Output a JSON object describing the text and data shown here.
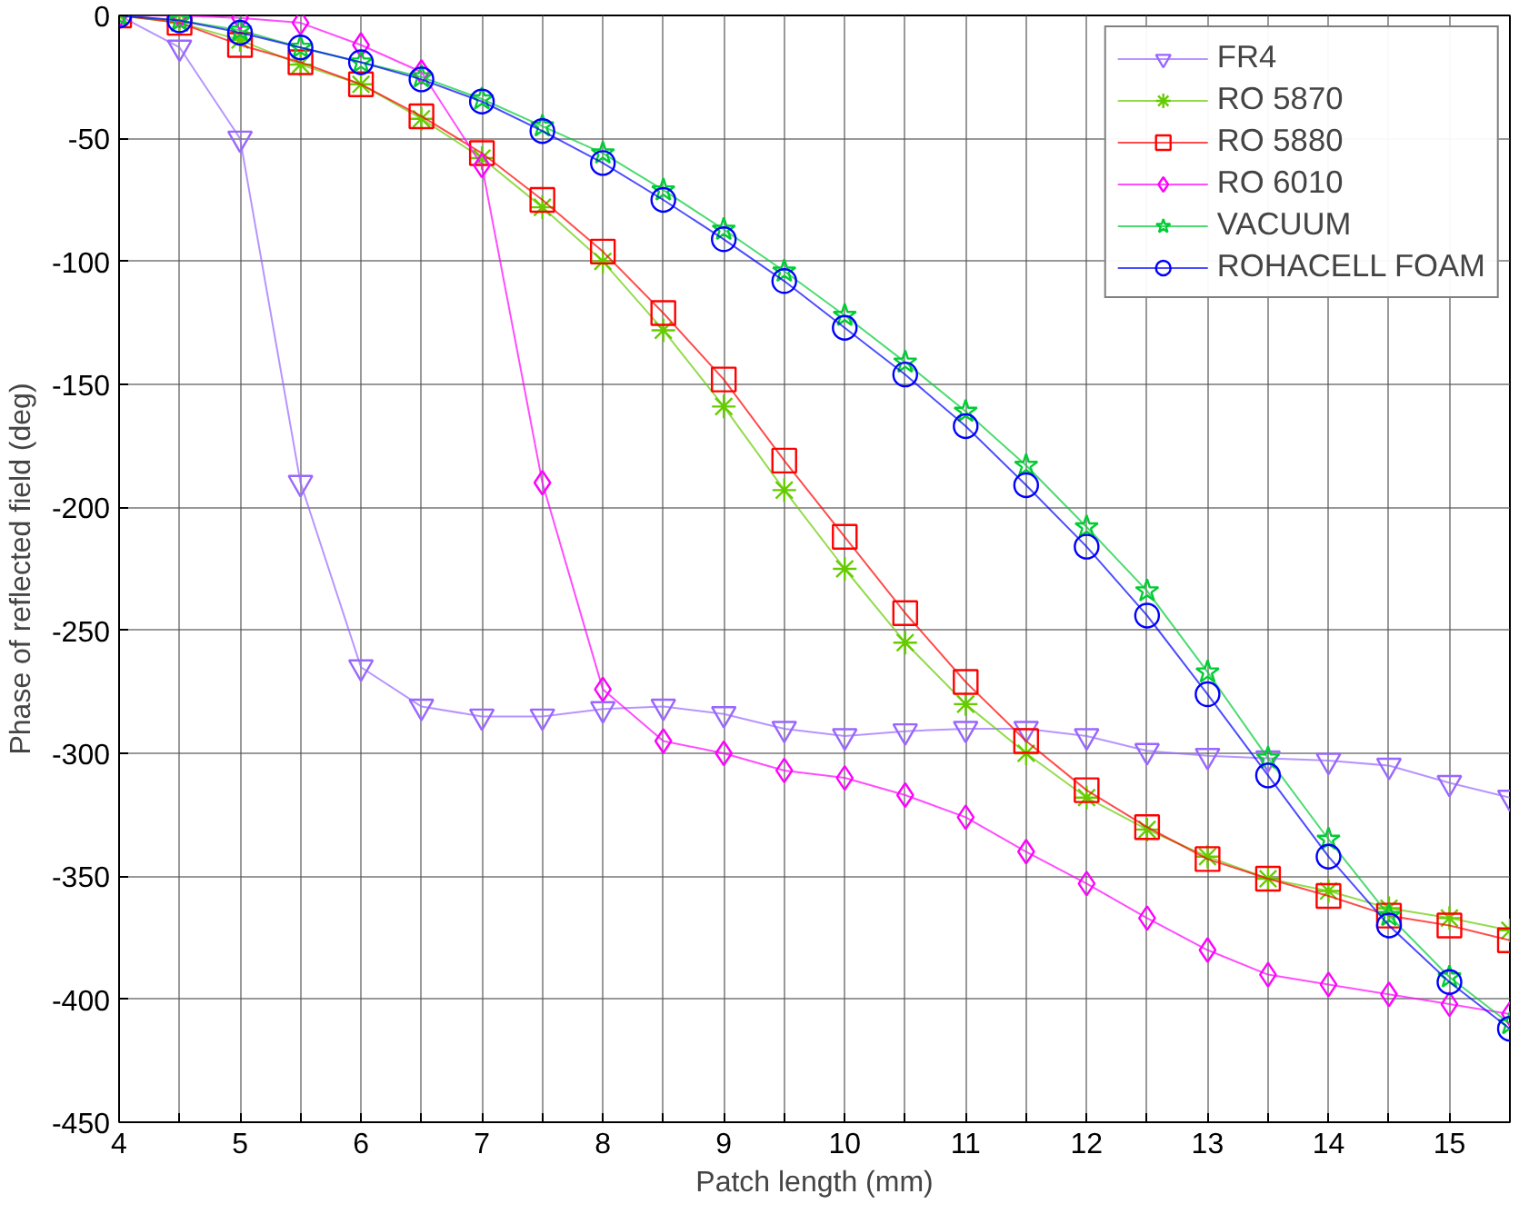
{
  "chart_data": {
    "type": "line",
    "xlabel": "Patch length (mm)",
    "ylabel": "Phase of reflected field (deg)",
    "x": [
      4,
      4.5,
      5,
      5.5,
      6,
      6.5,
      7,
      7.5,
      8,
      8.5,
      9,
      9.5,
      10,
      10.5,
      11,
      11.5,
      12,
      12.5,
      13,
      13.5,
      14,
      14.5,
      15,
      15.5
    ],
    "series": [
      {
        "name": "FR4",
        "color": "#9966ff",
        "marker": "triangle",
        "values": [
          0,
          -13,
          -50,
          -190,
          -265,
          -281,
          -285,
          -285,
          -282,
          -281,
          -284,
          -290,
          -293,
          -291,
          -290,
          -290,
          -293,
          -299,
          -301,
          -302,
          -303,
          -305,
          -312,
          -318
        ]
      },
      {
        "name": "RO 5870",
        "color": "#66cc00",
        "marker": "cross",
        "values": [
          0,
          -3,
          -10,
          -20,
          -28,
          -42,
          -58,
          -78,
          -100,
          -128,
          -159,
          -193,
          -225,
          -255,
          -280,
          -300,
          -318,
          -331,
          -342,
          -351,
          -356,
          -363,
          -367,
          -372
        ]
      },
      {
        "name": "RO 5880",
        "color": "#ff0000",
        "marker": "square",
        "values": [
          0,
          -3,
          -12,
          -19,
          -28,
          -41,
          -56,
          -75,
          -96,
          -121,
          -148,
          -181,
          -212,
          -243,
          -271,
          -295,
          -315,
          -330,
          -343,
          -351,
          -358,
          -366,
          -370,
          -376
        ]
      },
      {
        "name": "RO 6010",
        "color": "#ff00ff",
        "marker": "diamond",
        "values": [
          0,
          0,
          -1,
          -3,
          -12,
          -23,
          -61,
          -190,
          -274,
          -295,
          -300,
          -307,
          -310,
          -317,
          -326,
          -340,
          -353,
          -367,
          -380,
          -390,
          -394,
          -398,
          -402,
          -406
        ]
      },
      {
        "name": "VACUUM",
        "color": "#00cc33",
        "marker": "star",
        "values": [
          0,
          -2,
          -6,
          -13,
          -19,
          -25,
          -34,
          -45,
          -56,
          -71,
          -87,
          -104,
          -122,
          -141,
          -161,
          -183,
          -208,
          -234,
          -267,
          -302,
          -335,
          -366,
          -391,
          -410
        ]
      },
      {
        "name": "ROHACELL FOAM",
        "color": "#0000ff",
        "marker": "circle",
        "values": [
          0,
          -2,
          -7,
          -13,
          -19,
          -26,
          -35,
          -47,
          -60,
          -75,
          -91,
          -108,
          -127,
          -146,
          -167,
          -191,
          -216,
          -244,
          -276,
          -309,
          -342,
          -370,
          -393,
          -412
        ]
      }
    ],
    "xlim": [
      4,
      15.5
    ],
    "ylim": [
      -450,
      0
    ],
    "xticks": [
      4,
      {
        "value": 4.5,
        "label": null
      },
      5,
      {
        "value": 5.5,
        "label": null
      },
      6,
      {
        "value": 6.5,
        "label": null
      },
      7,
      {
        "value": 7.5,
        "label": null
      },
      8,
      {
        "value": 8.5,
        "label": null
      },
      9,
      {
        "value": 9.5,
        "label": null
      },
      10,
      {
        "value": 10.5,
        "label": null
      },
      11,
      {
        "value": 11.5,
        "label": null
      },
      12,
      {
        "value": 12.5,
        "label": null
      },
      13,
      {
        "value": 13.5,
        "label": null
      },
      14,
      {
        "value": 14.5,
        "label": null
      },
      15
    ],
    "yticks": [
      -450,
      -400,
      -350,
      -300,
      -250,
      -200,
      -150,
      -100,
      -50,
      0
    ],
    "grid": true,
    "legend": "top right",
    "line_style": "solid"
  }
}
